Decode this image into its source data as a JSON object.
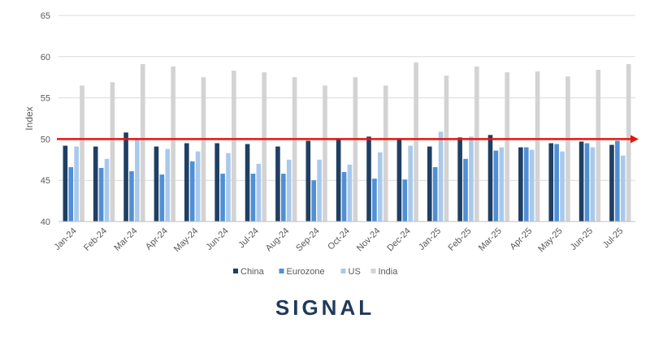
{
  "chart_data": {
    "type": "bar",
    "y_label": "Index",
    "categories": [
      "Jan-24",
      "Feb-24",
      "Mar-24",
      "Apr-24",
      "May-24",
      "Jun-24",
      "Jul-24",
      "Aug-24",
      "Sep-24",
      "Oct-24",
      "Nov-24",
      "Dec-24",
      "Jan-25",
      "Feb-25",
      "Mar-25",
      "Apr-25",
      "May-25",
      "Jun-25",
      "Jul-25"
    ],
    "series": [
      {
        "name": "China",
        "color": "#1f3f63",
        "values": [
          49.2,
          49.1,
          50.8,
          49.1,
          49.5,
          49.5,
          49.4,
          49.1,
          49.8,
          50.1,
          50.3,
          50.1,
          49.1,
          50.2,
          50.5,
          49.0,
          49.5,
          49.7,
          49.3
        ]
      },
      {
        "name": "Eurozone",
        "color": "#4f8fd6",
        "values": [
          46.6,
          46.5,
          46.1,
          45.7,
          47.3,
          45.8,
          45.8,
          45.8,
          45.0,
          46.0,
          45.2,
          45.1,
          46.6,
          47.6,
          48.6,
          49.0,
          49.4,
          49.5,
          49.8
        ]
      },
      {
        "name": "US",
        "color": "#a9c9ec",
        "values": [
          49.1,
          47.6,
          49.9,
          48.8,
          48.5,
          48.3,
          47.0,
          47.5,
          47.5,
          46.9,
          48.4,
          49.2,
          50.9,
          50.3,
          49.0,
          48.7,
          48.5,
          49.0,
          48.0
        ]
      },
      {
        "name": "India",
        "color": "#d3d3d3",
        "values": [
          56.5,
          56.9,
          59.1,
          58.8,
          57.5,
          58.3,
          58.1,
          57.5,
          56.5,
          57.5,
          56.5,
          59.3,
          57.7,
          58.8,
          58.1,
          58.2,
          57.6,
          58.4,
          59.1
        ]
      }
    ],
    "ylim": [
      40,
      65
    ],
    "yticks": [
      40,
      45,
      50,
      55,
      60,
      65
    ],
    "grid": true,
    "reference_line": {
      "value": 50,
      "color": "#e8140e"
    },
    "legend": "bottom",
    "logo": "SIGNAL"
  }
}
